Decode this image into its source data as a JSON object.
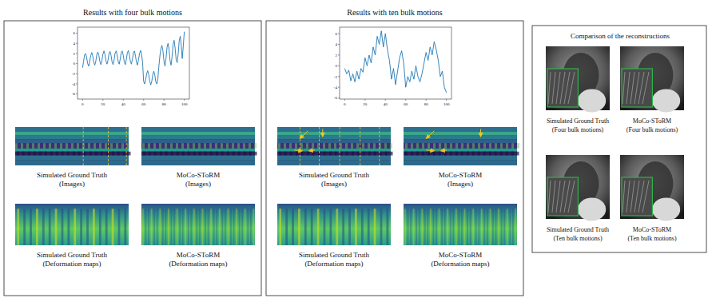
{
  "chart_data": [
    {
      "type": "line",
      "x": [
        0,
        1,
        2,
        3,
        4,
        5,
        6,
        7,
        8,
        9,
        10,
        11,
        12,
        13,
        14,
        15,
        16,
        17,
        18,
        19,
        20,
        21,
        22,
        23,
        24,
        25,
        26,
        27,
        28,
        29,
        30,
        31,
        32,
        33,
        34,
        35,
        36,
        37,
        38,
        39,
        40,
        41,
        42,
        43,
        44,
        45,
        46,
        47,
        48,
        49,
        50,
        51,
        52,
        53,
        54,
        55,
        56,
        57,
        58,
        59,
        60,
        61,
        62,
        63,
        64,
        65,
        66,
        67,
        68,
        69,
        70,
        71,
        72,
        73,
        74,
        75,
        76,
        77,
        78,
        79,
        80,
        81,
        82,
        83,
        84,
        85,
        86,
        87,
        88,
        89,
        90,
        91,
        92,
        93,
        94,
        95,
        96,
        97,
        98,
        99,
        100
      ],
      "series": [
        {
          "color": "#1f77b4",
          "values": [
            -0.8,
            0.5,
            1.8,
            2.0,
            1.2,
            0.0,
            -0.5,
            0.4,
            1.6,
            2.2,
            1.5,
            0.3,
            -0.3,
            0.5,
            1.8,
            2.3,
            1.6,
            0.4,
            -0.2,
            0.6,
            1.9,
            2.5,
            1.8,
            0.5,
            -0.1,
            0.7,
            2.0,
            2.4,
            1.6,
            0.3,
            -0.2,
            0.8,
            2.1,
            2.5,
            1.7,
            0.4,
            -0.1,
            0.9,
            2.2,
            2.5,
            1.6,
            0.3,
            -0.2,
            0.8,
            2.1,
            2.6,
            1.7,
            0.4,
            -0.1,
            0.9,
            2.2,
            2.5,
            1.5,
            0.2,
            -0.3,
            0.8,
            2.0,
            2.6,
            1.9,
            0.2,
            -3.5,
            -4.0,
            -3.2,
            -2.0,
            -1.4,
            -2.2,
            -3.4,
            -4.2,
            -3.5,
            -2.2,
            -1.5,
            -2.3,
            -3.6,
            -4.0,
            -3.0,
            -0.5,
            1.5,
            3.0,
            3.6,
            2.5,
            0.5,
            -0.5,
            1.0,
            3.2,
            4.0,
            2.8,
            0.6,
            -0.3,
            1.4,
            3.8,
            4.6,
            3.0,
            0.8,
            0.2,
            2.0,
            4.5,
            5.4,
            3.6,
            1.0,
            3.5,
            6.3
          ]
        }
      ],
      "xlim": [
        -5,
        105
      ],
      "ylim": [
        -7,
        7.2
      ],
      "xticks": [
        0,
        20,
        40,
        60,
        80,
        100
      ],
      "yticks": [
        -6,
        -4,
        -2,
        0,
        2,
        4,
        6
      ]
    },
    {
      "type": "line",
      "x": [
        0,
        2,
        4,
        6,
        8,
        10,
        12,
        14,
        16,
        18,
        20,
        22,
        24,
        26,
        28,
        30,
        32,
        34,
        36,
        38,
        40,
        42,
        44,
        46,
        48,
        50,
        52,
        54,
        56,
        58,
        60,
        62,
        64,
        66,
        68,
        70,
        72,
        74,
        76,
        78,
        80,
        82,
        84,
        86,
        88,
        90,
        92,
        94,
        96,
        98,
        100
      ],
      "series": [
        {
          "color": "#1f77b4",
          "values": [
            -0.5,
            -1.5,
            -0.8,
            -2.8,
            -1.5,
            -3.0,
            -1.0,
            -2.5,
            -0.5,
            -1.2,
            1.5,
            0.0,
            2.0,
            0.5,
            3.5,
            2.0,
            5.5,
            4.0,
            6.5,
            3.5,
            6.0,
            3.0,
            1.0,
            -2.5,
            -0.5,
            -3.5,
            -1.0,
            1.5,
            2.8,
            0.5,
            -4.0,
            -2.0,
            -3.0,
            -1.0,
            -2.5,
            0.0,
            -2.0,
            -3.0,
            -1.5,
            0.5,
            2.5,
            1.0,
            3.5,
            2.0,
            4.5,
            3.0,
            1.0,
            -2.0,
            -1.0,
            -4.0,
            -5.0
          ]
        }
      ],
      "xlim": [
        -5,
        105
      ],
      "ylim": [
        -6.2,
        7.2
      ],
      "xticks": [
        0,
        20,
        40,
        60,
        80,
        100
      ],
      "yticks": [
        -6,
        -4,
        -2,
        0,
        2,
        4,
        6
      ]
    }
  ],
  "panels": [
    {
      "title": "Results with four bulk motions",
      "captions": [
        [
          "Simulated Ground Truth",
          "(Images)"
        ],
        [
          "MoCo-SToRM",
          "(Images)"
        ],
        [
          "Simulated Ground Truth",
          "(Deformation maps)"
        ],
        [
          "MoCo-SToRM",
          "(Deformation maps)"
        ]
      ]
    },
    {
      "title": "Results with ten bulk motions",
      "captions": [
        [
          "Simulated Ground Truth",
          "(Images)"
        ],
        [
          "MoCo-SToRM",
          "(Images)"
        ],
        [
          "Simulated Ground Truth",
          "(Deformation maps)"
        ],
        [
          "MoCo-SToRM",
          "(Deformation maps)"
        ]
      ]
    },
    {
      "title": "Comparison of the reconstructions",
      "captions": [
        [
          "Simulated Ground Truth",
          "(Four bulk motions)"
        ],
        [
          "MoCo-SToRM",
          "(Four bulk motions)"
        ],
        [
          "Simulated Ground Truth",
          "(Ten bulk motions)"
        ],
        [
          "MoCo-SToRM",
          "(Ten bulk motions)"
        ]
      ]
    }
  ]
}
